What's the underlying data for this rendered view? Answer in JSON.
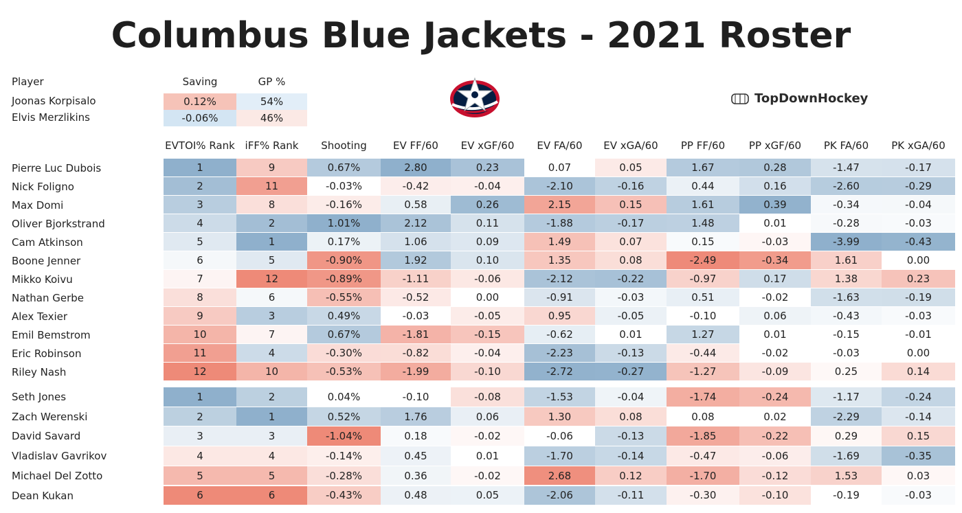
{
  "title": "Columbus Blue Jackets - 2021 Roster",
  "brand": "TopDownHockey",
  "logo_icon": "blue-jackets-star-logo",
  "goalie_table": {
    "headers": [
      "Player",
      "Saving",
      "GP %"
    ],
    "rows": [
      {
        "player": "Joonas Korpisalo",
        "saving": "0.12%",
        "gp": "54%"
      },
      {
        "player": "Elvis Merzlikins",
        "saving": "-0.06%",
        "gp": "46%"
      }
    ]
  },
  "columns": [
    "EVTOI% Rank",
    "iFF% Rank",
    "Shooting",
    "EV FF/60",
    "EV xGF/60",
    "EV FA/60",
    "EV xGA/60",
    "PP FF/60",
    "PP xGF/60",
    "PK FA/60",
    "PK xGA/60"
  ],
  "forwards": [
    {
      "player": "Pierre Luc Dubois",
      "values": [
        "1",
        "9",
        "0.67%",
        "2.80",
        "0.23",
        "0.07",
        "0.05",
        "1.67",
        "0.28",
        "-1.47",
        "-0.17"
      ]
    },
    {
      "player": "Nick Foligno",
      "values": [
        "2",
        "11",
        "-0.03%",
        "-0.42",
        "-0.04",
        "-2.10",
        "-0.16",
        "0.44",
        "0.16",
        "-2.60",
        "-0.29"
      ]
    },
    {
      "player": "Max Domi",
      "values": [
        "3",
        "8",
        "-0.16%",
        "0.58",
        "0.26",
        "2.15",
        "0.15",
        "1.61",
        "0.39",
        "-0.34",
        "-0.04"
      ]
    },
    {
      "player": "Oliver Bjorkstrand",
      "values": [
        "4",
        "2",
        "1.01%",
        "2.12",
        "0.11",
        "-1.88",
        "-0.17",
        "1.48",
        "0.01",
        "-0.28",
        "-0.03"
      ]
    },
    {
      "player": "Cam Atkinson",
      "values": [
        "5",
        "1",
        "0.17%",
        "1.06",
        "0.09",
        "1.49",
        "0.07",
        "0.15",
        "-0.03",
        "-3.99",
        "-0.43"
      ]
    },
    {
      "player": "Boone Jenner",
      "values": [
        "6",
        "5",
        "-0.90%",
        "1.92",
        "0.10",
        "1.35",
        "0.08",
        "-2.49",
        "-0.34",
        "1.61",
        "0.00"
      ]
    },
    {
      "player": "Mikko Koivu",
      "values": [
        "7",
        "12",
        "-0.89%",
        "-1.11",
        "-0.06",
        "-2.12",
        "-0.22",
        "-0.97",
        "0.17",
        "1.38",
        "0.23"
      ]
    },
    {
      "player": "Nathan Gerbe",
      "values": [
        "8",
        "6",
        "-0.55%",
        "-0.52",
        "0.00",
        "-0.91",
        "-0.03",
        "0.51",
        "-0.02",
        "-1.63",
        "-0.19"
      ]
    },
    {
      "player": "Alex Texier",
      "values": [
        "9",
        "3",
        "0.49%",
        "-0.03",
        "-0.05",
        "0.95",
        "-0.05",
        "-0.10",
        "0.06",
        "-0.43",
        "-0.03"
      ]
    },
    {
      "player": "Emil Bemstrom",
      "values": [
        "10",
        "7",
        "0.67%",
        "-1.81",
        "-0.15",
        "-0.62",
        "0.01",
        "1.27",
        "0.01",
        "-0.15",
        "-0.01"
      ]
    },
    {
      "player": "Eric Robinson",
      "values": [
        "11",
        "4",
        "-0.30%",
        "-0.82",
        "-0.04",
        "-2.23",
        "-0.13",
        "-0.44",
        "-0.02",
        "-0.03",
        "0.00"
      ]
    },
    {
      "player": "Riley Nash",
      "values": [
        "12",
        "10",
        "-0.53%",
        "-1.99",
        "-0.10",
        "-2.72",
        "-0.27",
        "-1.27",
        "-0.09",
        "0.25",
        "0.14"
      ]
    }
  ],
  "defense": [
    {
      "player": "Seth Jones",
      "values": [
        "1",
        "2",
        "0.04%",
        "-0.10",
        "-0.08",
        "-1.53",
        "-0.04",
        "-1.74",
        "-0.24",
        "-1.17",
        "-0.24"
      ]
    },
    {
      "player": "Zach Werenski",
      "values": [
        "2",
        "1",
        "0.52%",
        "1.76",
        "0.06",
        "1.30",
        "0.08",
        "0.08",
        "0.02",
        "-2.29",
        "-0.14"
      ]
    },
    {
      "player": "David Savard",
      "values": [
        "3",
        "3",
        "-1.04%",
        "0.18",
        "-0.02",
        "-0.06",
        "-0.13",
        "-1.85",
        "-0.22",
        "0.29",
        "0.15"
      ]
    },
    {
      "player": "Vladislav Gavrikov",
      "values": [
        "4",
        "4",
        "-0.14%",
        "0.45",
        "0.01",
        "-1.70",
        "-0.14",
        "-0.47",
        "-0.06",
        "-1.69",
        "-0.35"
      ]
    },
    {
      "player": "Michael Del Zotto",
      "values": [
        "5",
        "5",
        "-0.28%",
        "0.36",
        "-0.02",
        "2.68",
        "0.12",
        "-1.70",
        "-0.12",
        "1.53",
        "0.03"
      ]
    },
    {
      "player": "Dean Kukan",
      "values": [
        "6",
        "6",
        "-0.43%",
        "0.48",
        "0.05",
        "-2.06",
        "-0.11",
        "-0.30",
        "-0.10",
        "-0.19",
        "-0.03"
      ]
    }
  ],
  "chart_data": {
    "type": "table",
    "title": "Columbus Blue Jackets - 2021 Roster",
    "columns": [
      "Player",
      "EVTOI% Rank",
      "iFF% Rank",
      "Shooting",
      "EV FF/60",
      "EV xGF/60",
      "EV FA/60",
      "EV xGA/60",
      "PP FF/60",
      "PP xGF/60",
      "PK FA/60",
      "PK xGA/60"
    ],
    "color_scale": {
      "good": "#8fb0cc",
      "bad": "#ee8a78",
      "neutral": "#ffffff"
    }
  }
}
